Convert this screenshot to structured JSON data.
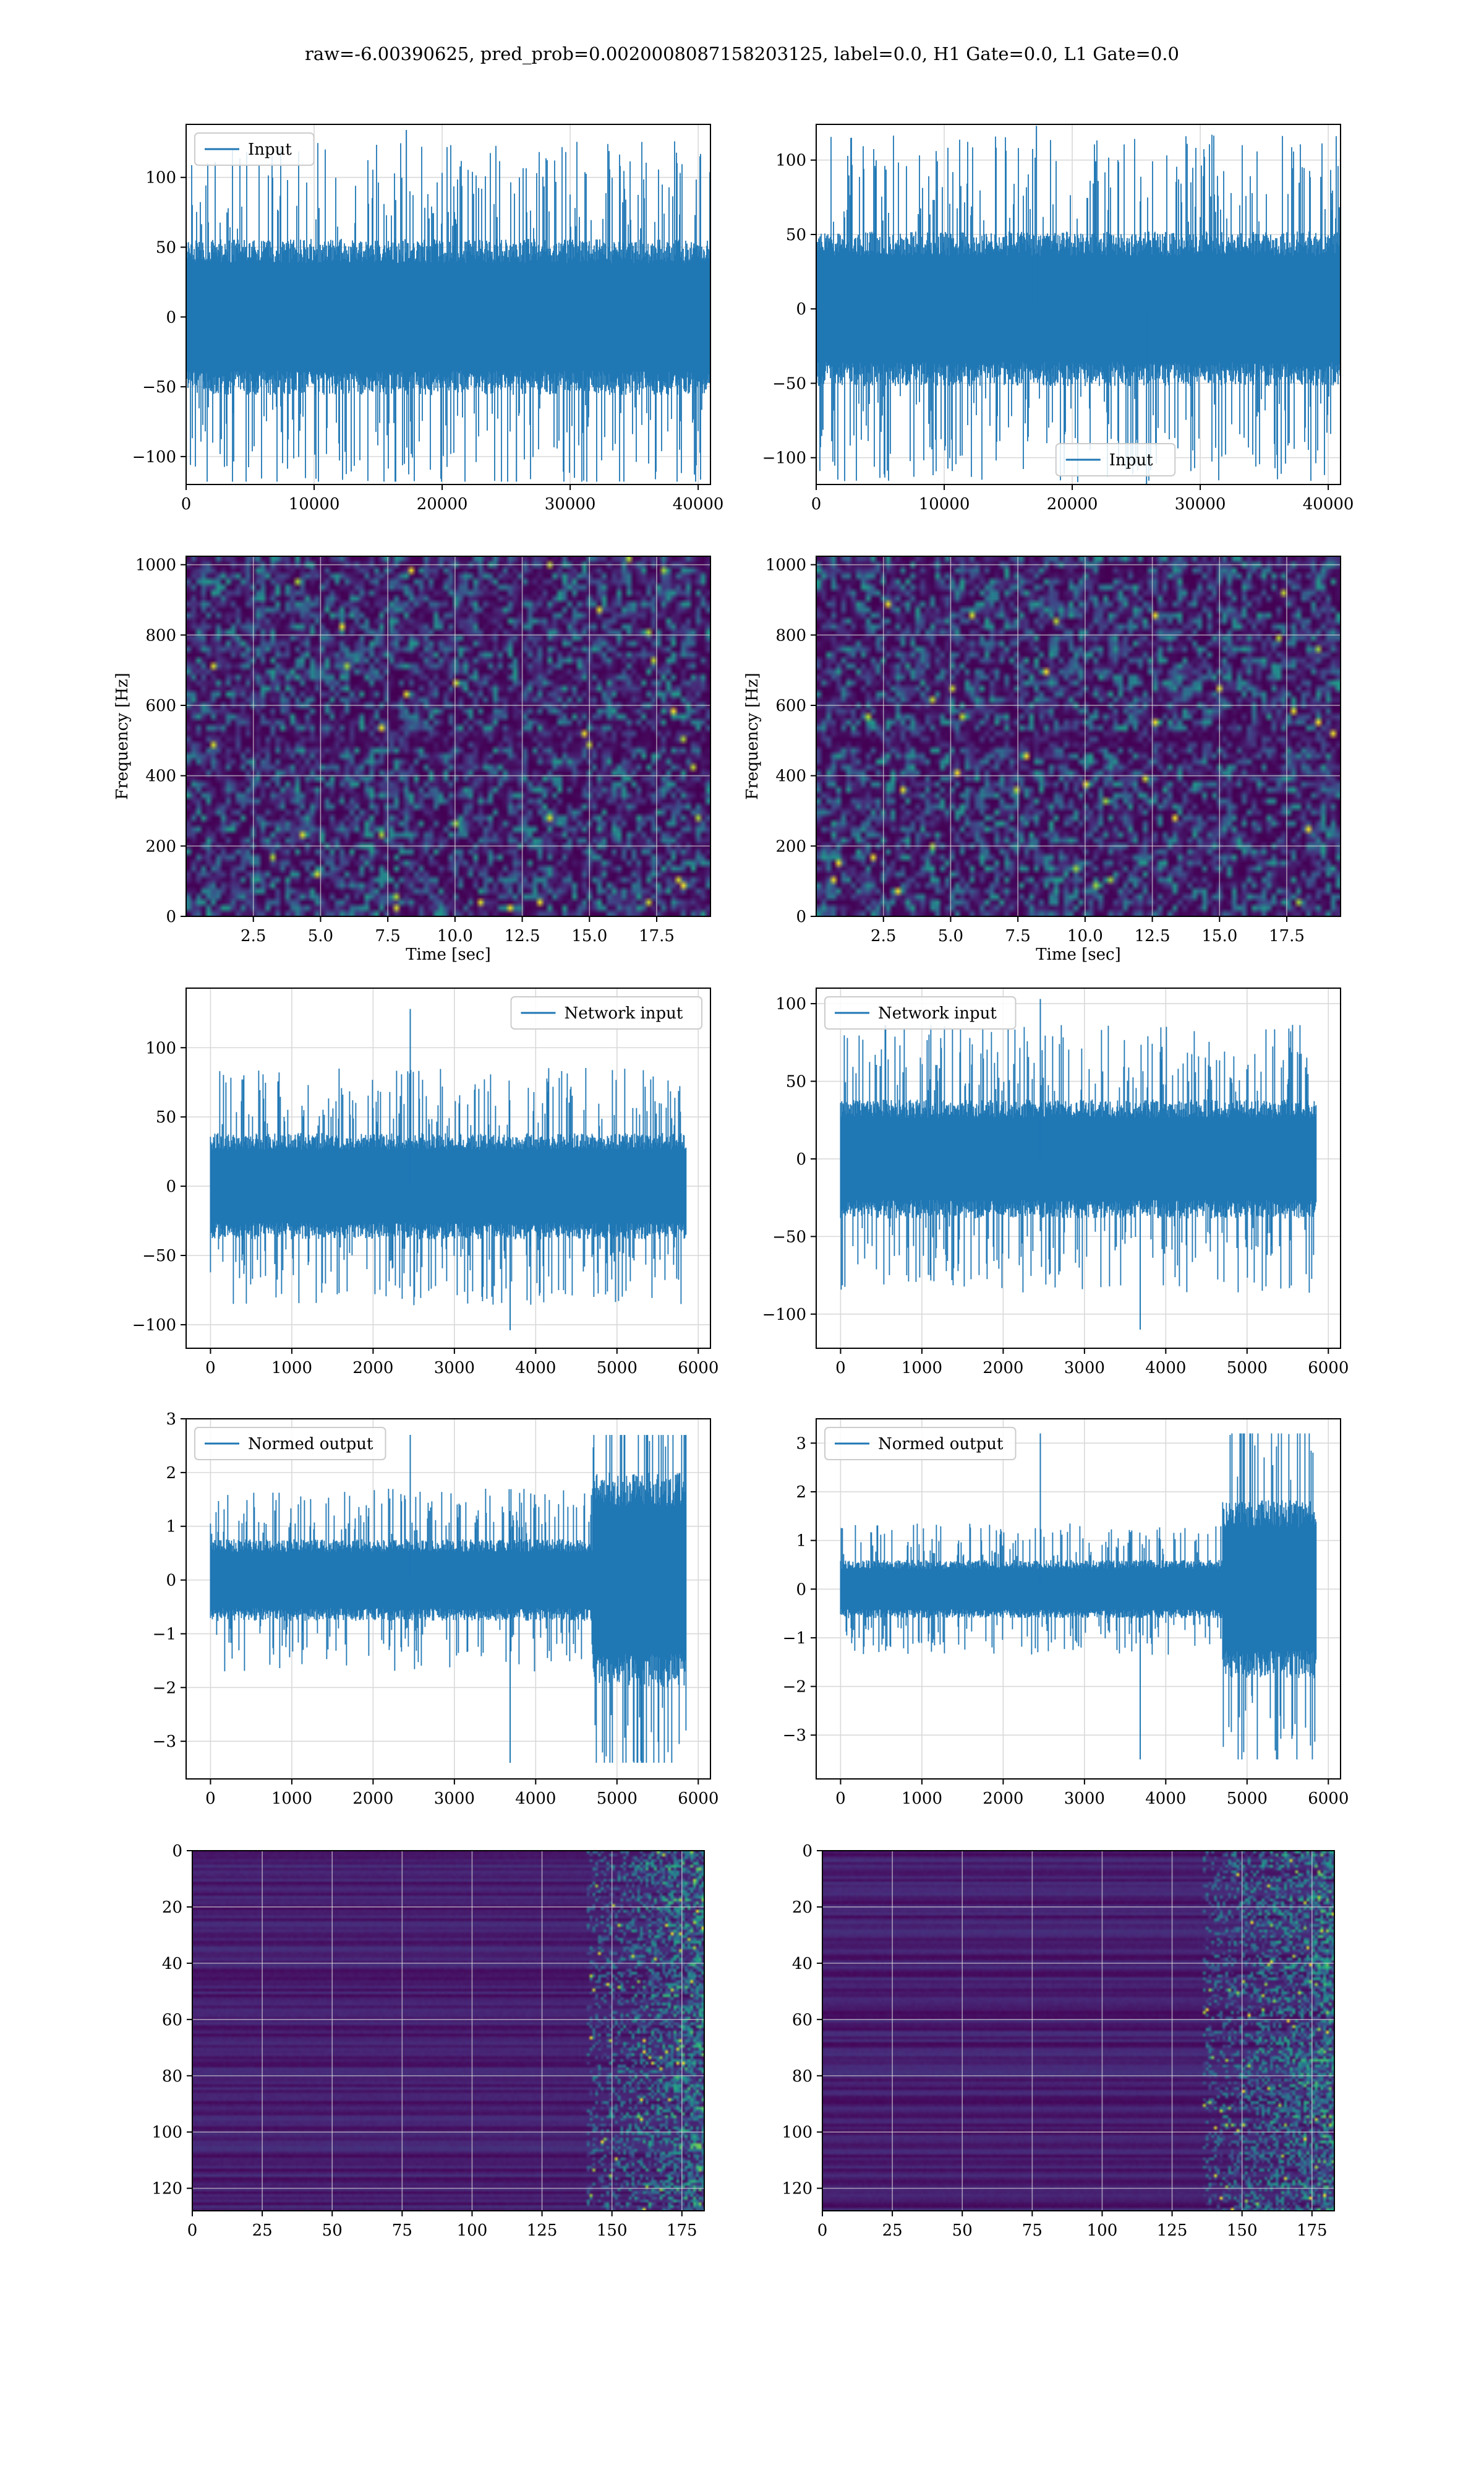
{
  "figure": {
    "title": "raw=-6.00390625, pred_prob=0.0020008087158203125, label=0.0, H1 Gate=0.0, L1 Gate=0.0"
  },
  "colors": {
    "line": "#1f77b4",
    "grid": "#d9d9d9",
    "viridis_dark": "#440154",
    "viridis_mid": "#21918c",
    "viridis_bright": "#fde725"
  },
  "chart_data": [
    {
      "id": "input-h1",
      "type": "line",
      "series": [
        {
          "name": "Input",
          "n": 40960,
          "amplitude": 70,
          "peak_max": 134,
          "peak_min": -118
        }
      ],
      "legend": "upper-left",
      "xlim": [
        0,
        40960
      ],
      "ylim": [
        -120,
        138
      ],
      "xticks": [
        0,
        10000,
        20000,
        30000,
        40000
      ],
      "xtick_labels": [
        "0",
        "10000",
        "20000",
        "30000",
        "40000"
      ],
      "yticks": [
        -100,
        -50,
        0,
        50,
        100
      ],
      "ytick_labels": [
        "−100",
        "−50",
        "0",
        "50",
        "100"
      ],
      "grid": true
    },
    {
      "id": "input-l1",
      "type": "line",
      "series": [
        {
          "name": "Input",
          "n": 40960,
          "amplitude": 65,
          "peak_max": 123,
          "peak_min": -118
        }
      ],
      "legend": "lower-center",
      "xlim": [
        0,
        40960
      ],
      "ylim": [
        -118,
        124
      ],
      "xticks": [
        0,
        10000,
        20000,
        30000,
        40000
      ],
      "xtick_labels": [
        "0",
        "10000",
        "20000",
        "30000",
        "40000"
      ],
      "yticks": [
        -100,
        -50,
        0,
        50,
        100
      ],
      "ytick_labels": [
        "−100",
        "−50",
        "0",
        "50",
        "100"
      ],
      "grid": true
    },
    {
      "id": "spectrogram-h1",
      "type": "heatmap",
      "xlabel": "Time [sec]",
      "ylabel": "Frequency [Hz]",
      "xlim": [
        0,
        19.5
      ],
      "ylim": [
        0,
        1024
      ],
      "xticks": [
        2.5,
        5.0,
        7.5,
        10.0,
        12.5,
        15.0,
        17.5
      ],
      "xtick_labels": [
        "2.5",
        "5.0",
        "7.5",
        "10.0",
        "12.5",
        "15.0",
        "17.5"
      ],
      "yticks": [
        0,
        200,
        400,
        600,
        800,
        1000
      ],
      "ytick_labels": [
        "0",
        "200",
        "400",
        "600",
        "800",
        "1000"
      ],
      "colormap": "viridis",
      "grid": true
    },
    {
      "id": "spectrogram-l1",
      "type": "heatmap",
      "xlabel": "Time [sec]",
      "ylabel": "Frequency [Hz]",
      "xlim": [
        0,
        19.5
      ],
      "ylim": [
        0,
        1024
      ],
      "xticks": [
        2.5,
        5.0,
        7.5,
        10.0,
        12.5,
        15.0,
        17.5
      ],
      "xtick_labels": [
        "2.5",
        "5.0",
        "7.5",
        "10.0",
        "12.5",
        "15.0",
        "17.5"
      ],
      "yticks": [
        0,
        200,
        400,
        600,
        800,
        1000
      ],
      "ytick_labels": [
        "0",
        "200",
        "400",
        "600",
        "800",
        "1000"
      ],
      "colormap": "viridis",
      "grid": true
    },
    {
      "id": "network-input-h1",
      "type": "line",
      "series": [
        {
          "name": "Network input",
          "n": 5850,
          "amplitude": 48,
          "peak_max": 128,
          "peak_min": -104
        }
      ],
      "legend": "upper-right",
      "xlim": [
        -300,
        6150
      ],
      "ylim": [
        -117,
        143
      ],
      "xticks": [
        0,
        1000,
        2000,
        3000,
        4000,
        5000,
        6000
      ],
      "xtick_labels": [
        "0",
        "1000",
        "2000",
        "3000",
        "4000",
        "5000",
        "6000"
      ],
      "yticks": [
        -100,
        -50,
        0,
        50,
        100
      ],
      "ytick_labels": [
        "−100",
        "−50",
        "0",
        "50",
        "100"
      ],
      "grid": true
    },
    {
      "id": "network-input-l1",
      "type": "line",
      "series": [
        {
          "name": "Network input",
          "n": 5850,
          "amplitude": 48,
          "peak_max": 103,
          "peak_min": -110
        }
      ],
      "legend": "upper-left",
      "xlim": [
        -300,
        6150
      ],
      "ylim": [
        -122,
        110
      ],
      "xticks": [
        0,
        1000,
        2000,
        3000,
        4000,
        5000,
        6000
      ],
      "xtick_labels": [
        "0",
        "1000",
        "2000",
        "3000",
        "4000",
        "5000",
        "6000"
      ],
      "yticks": [
        -100,
        -50,
        0,
        50,
        100
      ],
      "ytick_labels": [
        "−100",
        "−50",
        "0",
        "50",
        "100"
      ],
      "grid": true
    },
    {
      "id": "normed-output-h1",
      "type": "line",
      "series": [
        {
          "name": "Normed output",
          "n": 5850,
          "amplitude": 0.95,
          "burst_start": 4700,
          "burst_amplitude": 2.5,
          "peak_max": 2.7,
          "peak_min": -3.4
        }
      ],
      "legend": "upper-left",
      "xlim": [
        -300,
        6150
      ],
      "ylim": [
        -3.7,
        3.0
      ],
      "xticks": [
        0,
        1000,
        2000,
        3000,
        4000,
        5000,
        6000
      ],
      "xtick_labels": [
        "0",
        "1000",
        "2000",
        "3000",
        "4000",
        "5000",
        "6000"
      ],
      "yticks": [
        -3,
        -2,
        -1,
        0,
        1,
        2,
        3
      ],
      "ytick_labels": [
        "−3",
        "−2",
        "−1",
        "0",
        "1",
        "2",
        "3"
      ],
      "grid": true
    },
    {
      "id": "normed-output-l1",
      "type": "line",
      "series": [
        {
          "name": "Normed output",
          "n": 5850,
          "amplitude": 0.75,
          "burst_start": 4700,
          "burst_amplitude": 2.3,
          "peak_max": 3.2,
          "peak_min": -3.5
        }
      ],
      "legend": "upper-left",
      "xlim": [
        -300,
        6150
      ],
      "ylim": [
        -3.9,
        3.5
      ],
      "xticks": [
        0,
        1000,
        2000,
        3000,
        4000,
        5000,
        6000
      ],
      "xtick_labels": [
        "0",
        "1000",
        "2000",
        "3000",
        "4000",
        "5000",
        "6000"
      ],
      "yticks": [
        -3,
        -2,
        -1,
        0,
        1,
        2,
        3
      ],
      "ytick_labels": [
        "−3",
        "−2",
        "−1",
        "0",
        "1",
        "2",
        "3"
      ],
      "grid": true
    },
    {
      "id": "feature-map-h1",
      "type": "heatmap",
      "xlim": [
        0,
        183
      ],
      "ylim": [
        128,
        0
      ],
      "xticks": [
        0,
        25,
        50,
        75,
        100,
        125,
        150,
        175
      ],
      "xtick_labels": [
        "0",
        "25",
        "50",
        "75",
        "100",
        "125",
        "150",
        "175"
      ],
      "yticks": [
        0,
        20,
        40,
        60,
        80,
        100,
        120
      ],
      "ytick_labels": [
        "0",
        "20",
        "40",
        "60",
        "80",
        "100",
        "120"
      ],
      "colormap": "viridis",
      "activity_onset_col": 140,
      "grid": true
    },
    {
      "id": "feature-map-l1",
      "type": "heatmap",
      "xlim": [
        0,
        183
      ],
      "ylim": [
        128,
        0
      ],
      "xticks": [
        0,
        25,
        50,
        75,
        100,
        125,
        150,
        175
      ],
      "xtick_labels": [
        "0",
        "25",
        "50",
        "75",
        "100",
        "125",
        "150",
        "175"
      ],
      "yticks": [
        0,
        20,
        40,
        60,
        80,
        100,
        120
      ],
      "ytick_labels": [
        "0",
        "20",
        "40",
        "60",
        "80",
        "100",
        "120"
      ],
      "colormap": "viridis",
      "activity_onset_col": 135,
      "grid": true
    }
  ]
}
